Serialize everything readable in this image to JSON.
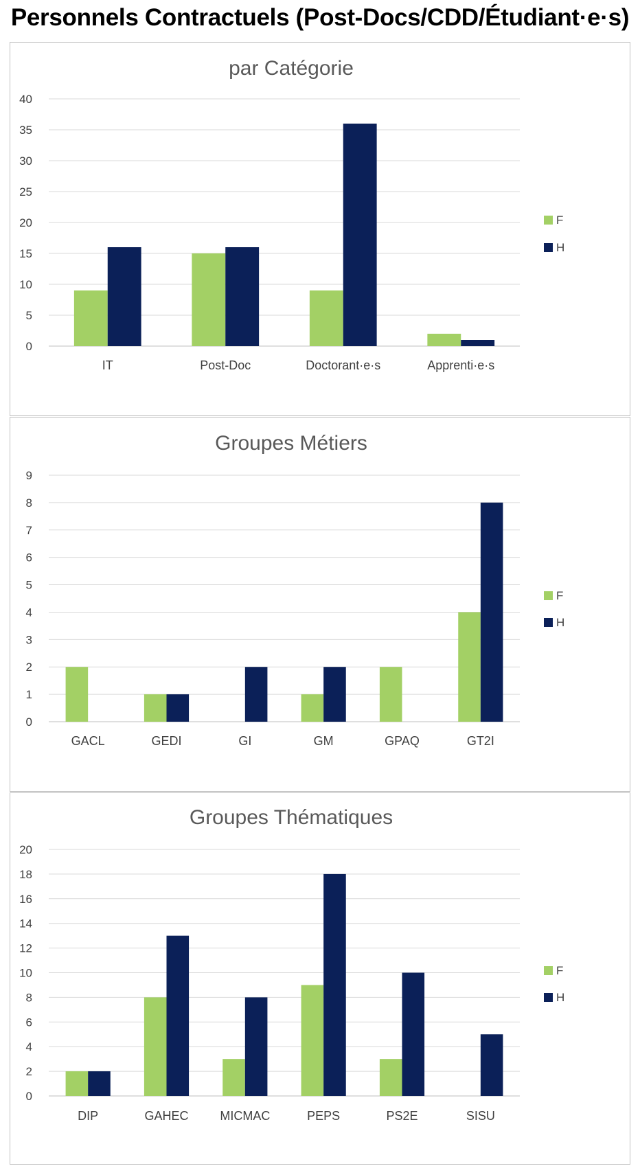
{
  "page_title": "Personnels Contractuels (Post-Docs/CDD/Étudiant·e·s)",
  "colors": {
    "F": "#a3d065",
    "H": "#0b2058",
    "grid": "#d9d9d9",
    "axis": "#bfbfbf"
  },
  "chart_data": [
    {
      "type": "bar",
      "title": "par Catégorie",
      "categories": [
        "IT",
        "Post-Doc",
        "Doctorant·e·s",
        "Apprenti·e·s"
      ],
      "series": [
        {
          "name": "F",
          "values": [
            9,
            15,
            9,
            2
          ]
        },
        {
          "name": "H",
          "values": [
            16,
            16,
            36,
            1
          ]
        }
      ],
      "ylim": [
        0,
        40
      ],
      "yticks": [
        0,
        5,
        10,
        15,
        20,
        25,
        30,
        35,
        40
      ],
      "grid": true,
      "legend": "right",
      "xlabel": "",
      "ylabel": ""
    },
    {
      "type": "bar",
      "title": "Groupes Métiers",
      "categories": [
        "GACL",
        "GEDI",
        "GI",
        "GM",
        "GPAQ",
        "GT2I"
      ],
      "series": [
        {
          "name": "F",
          "values": [
            2,
            1,
            0,
            1,
            2,
            4
          ]
        },
        {
          "name": "H",
          "values": [
            0,
            1,
            2,
            2,
            0,
            8
          ]
        }
      ],
      "ylim": [
        0,
        9
      ],
      "yticks": [
        0,
        1,
        2,
        3,
        4,
        5,
        6,
        7,
        8,
        9
      ],
      "grid": true,
      "legend": "right",
      "xlabel": "",
      "ylabel": ""
    },
    {
      "type": "bar",
      "title": "Groupes Thématiques",
      "categories": [
        "DIP",
        "GAHEC",
        "MICMAC",
        "PEPS",
        "PS2E",
        "SISU"
      ],
      "series": [
        {
          "name": "F",
          "values": [
            2,
            8,
            3,
            9,
            3,
            0
          ]
        },
        {
          "name": "H",
          "values": [
            2,
            13,
            8,
            18,
            10,
            5
          ]
        }
      ],
      "ylim": [
        0,
        20
      ],
      "yticks": [
        0,
        2,
        4,
        6,
        8,
        10,
        12,
        14,
        16,
        18,
        20
      ],
      "grid": true,
      "legend": "right",
      "xlabel": "",
      "ylabel": ""
    }
  ]
}
